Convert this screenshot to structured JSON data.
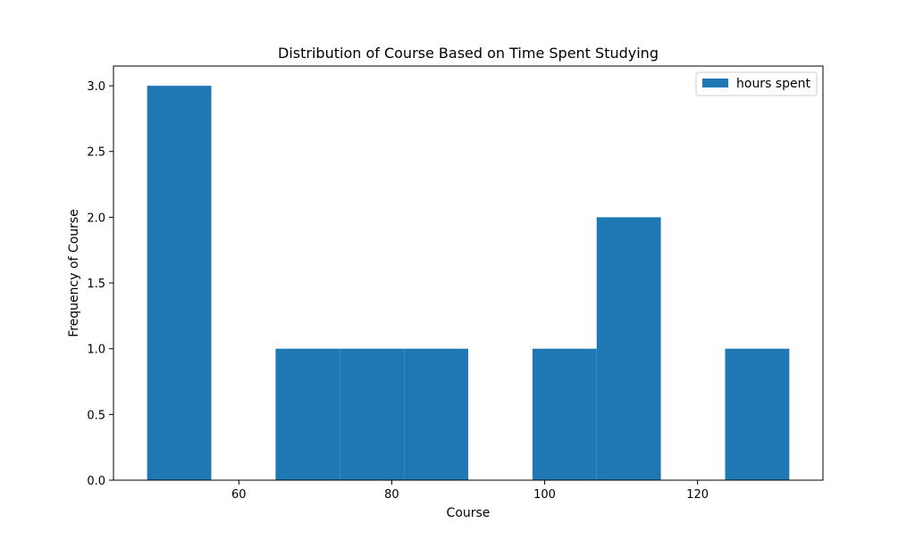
{
  "chart_data": {
    "type": "bar",
    "title": "Distribution of Course Based on Time Spent Studying",
    "xlabel": "Course",
    "ylabel": "Frequency of Course",
    "xlim": [
      43.6,
      136.4
    ],
    "ylim": [
      0,
      3.15
    ],
    "x_ticks": [
      60,
      80,
      100,
      120
    ],
    "y_ticks": [
      "0.0",
      "0.5",
      "1.0",
      "1.5",
      "2.0",
      "2.5",
      "3.0"
    ],
    "bins": [
      {
        "start": 48,
        "end": 56.4,
        "count": 3
      },
      {
        "start": 56.4,
        "end": 64.8,
        "count": 0
      },
      {
        "start": 64.8,
        "end": 73.2,
        "count": 1
      },
      {
        "start": 73.2,
        "end": 81.6,
        "count": 1
      },
      {
        "start": 81.6,
        "end": 90.0,
        "count": 1
      },
      {
        "start": 90.0,
        "end": 98.4,
        "count": 0
      },
      {
        "start": 98.4,
        "end": 106.8,
        "count": 1
      },
      {
        "start": 106.8,
        "end": 115.2,
        "count": 2
      },
      {
        "start": 115.2,
        "end": 123.6,
        "count": 0
      },
      {
        "start": 123.6,
        "end": 132.0,
        "count": 1
      }
    ],
    "series": [
      {
        "name": "hours spent",
        "color": "#1f77b4"
      }
    ],
    "legend_position": "top-right",
    "grid": false
  }
}
